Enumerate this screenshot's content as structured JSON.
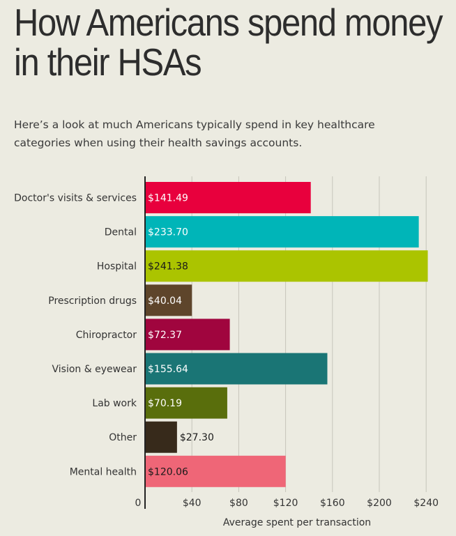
{
  "header": {
    "title_line1": "How Americans spend money",
    "title_line2": "in their HSAs",
    "subtitle": "Here’s a look at much Americans typically spend in key healthcare categories when using their health savings accounts."
  },
  "chart_data": {
    "type": "bar",
    "orientation": "horizontal",
    "categories": [
      "Doctor's visits & services",
      "Dental",
      "Hospital",
      "Prescription drugs",
      "Chiropractor",
      "Vision & eyewear",
      "Lab work",
      "Other",
      "Mental health"
    ],
    "values": [
      141.49,
      233.7,
      241.38,
      40.04,
      72.37,
      155.64,
      70.19,
      27.3,
      120.06
    ],
    "value_labels": [
      "$141.49",
      "$233.70",
      "$241.38",
      "$40.04",
      "$72.37",
      "$155.64",
      "$70.19",
      "$27.30",
      "$120.06"
    ],
    "colors": [
      "#e8003d",
      "#00b5b8",
      "#abc400",
      "#5e452b",
      "#a0053e",
      "#1a7575",
      "#596e0c",
      "#372a1b",
      "#ef6677"
    ],
    "label_colors": [
      "#ffffff",
      "#ffffff",
      "#1a1a1a",
      "#ffffff",
      "#ffffff",
      "#ffffff",
      "#ffffff",
      "#1a1a1a",
      "#1a1a1a"
    ],
    "x_ticks": [
      0,
      40,
      80,
      120,
      160,
      200,
      240
    ],
    "x_tick_labels": [
      "0",
      "$40",
      "$80",
      "$120",
      "$160",
      "$200",
      "$240"
    ],
    "xlim": [
      0,
      250
    ],
    "xlabel": "Average spent per transaction",
    "ylabel": "",
    "grid": true
  }
}
